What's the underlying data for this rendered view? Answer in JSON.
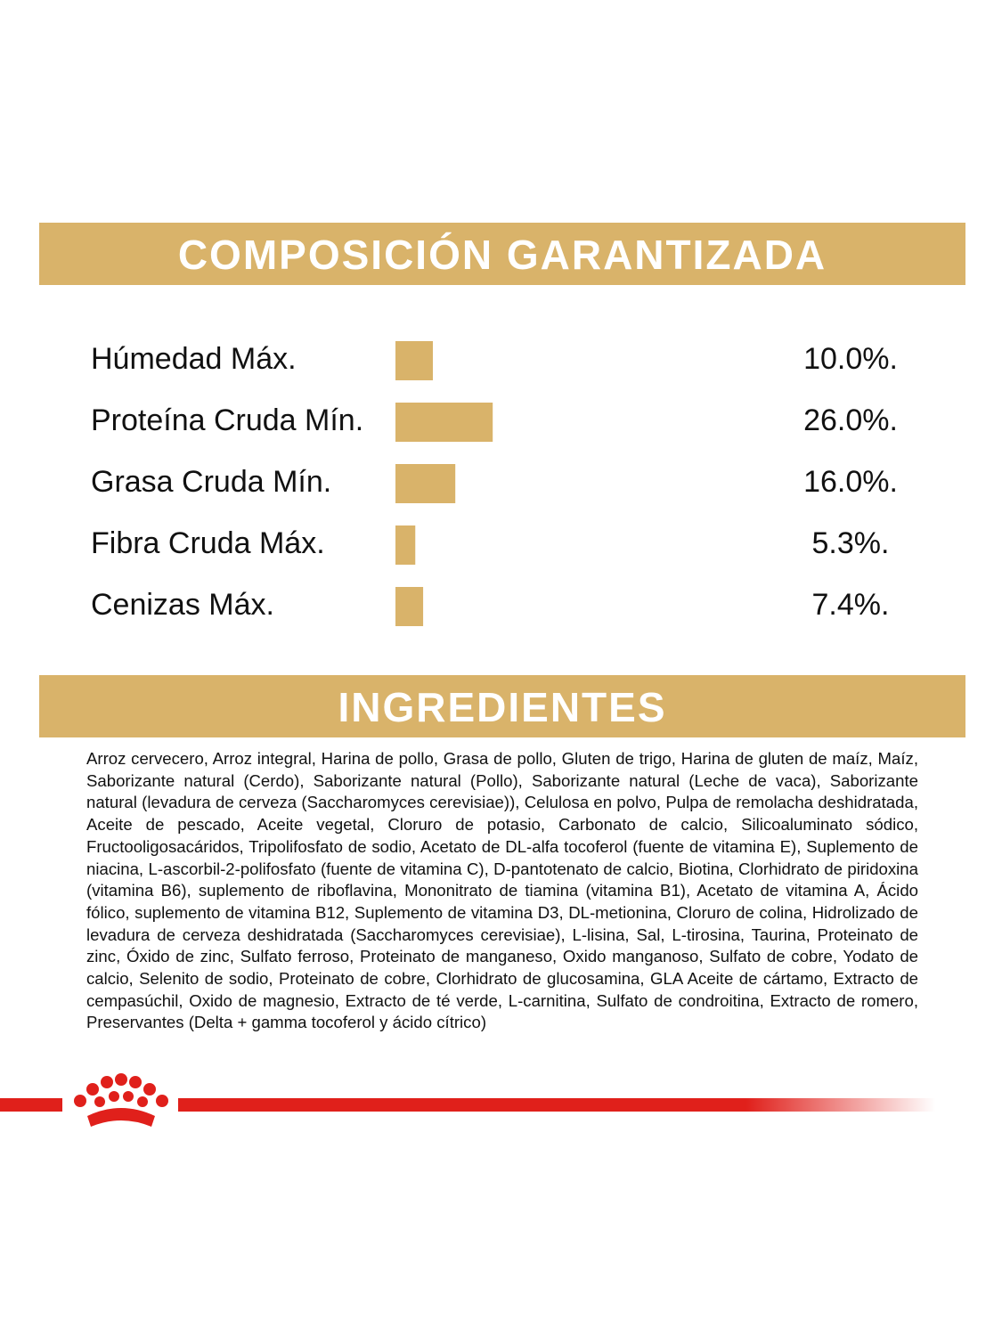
{
  "chart_data": {
    "type": "bar",
    "orientation": "horizontal",
    "title": "COMPOSICIÓN GARANTIZADA",
    "categories": [
      "Húmedad Máx.",
      "Proteína Cruda Mín.",
      "Grasa Cruda Mín.",
      "Fibra Cruda Máx.",
      "Cenizas Máx."
    ],
    "values": [
      10.0,
      26.0,
      16.0,
      5.3,
      7.4
    ],
    "value_labels": [
      "10.0%.",
      "26.0%.",
      "16.0%.",
      "5.3%.",
      "7.4%."
    ],
    "color": "#d9b36a"
  },
  "ingredients": {
    "title": "INGREDIENTES",
    "text": "Arroz cervecero, Arroz integral, Harina de pollo, Grasa de pollo, Gluten de trigo, Harina de gluten de maíz, Maíz, Saborizante natural (Cerdo), Saborizante natural (Pollo), Saborizante natural (Leche de vaca), Saborizante natural (levadura de cerveza (Saccharomyces cerevisiae)), Celulosa en polvo, Pulpa de remolacha deshidratada, Aceite de pescado, Aceite vegetal, Cloruro de potasio, Carbonato de calcio, Silicoaluminato sódico, Fructooligosacáridos, Tripolifosfato de sodio, Acetato de DL-alfa tocoferol (fuente de vitamina E), Suplemento de niacina, L-ascorbil-2-polifosfato (fuente de vitamina C), D-pantotenato de calcio, Biotina, Clorhidrato de piridoxina (vitamina B6), suplemento de riboflavina, Mononitrato de tiamina (vitamina B1), Acetato de vitamina A, Ácido fólico, suplemento de vitamina B12, Suplemento de vitamina D3, DL-metionina, Cloruro de colina, Hidrolizado de levadura de cerveza deshidratada (Saccharomyces cerevisiae), L-lisina, Sal, L-tirosina, Taurina, Proteinato de zinc, Óxido de zinc, Sulfato ferroso, Proteinato de manganeso, Oxido manganoso, Sulfato de cobre, Yodato de calcio, Selenito de sodio, Proteinato de cobre, Clorhidrato de glucosamina, GLA Aceite de cártamo, Extracto de cempasúchil, Oxido de magnesio, Extracto de té verde, L-carnitina, Sulfato de condroitina, Extracto de romero, Preservantes (Delta + gamma tocoferol y ácido cítrico)"
  }
}
